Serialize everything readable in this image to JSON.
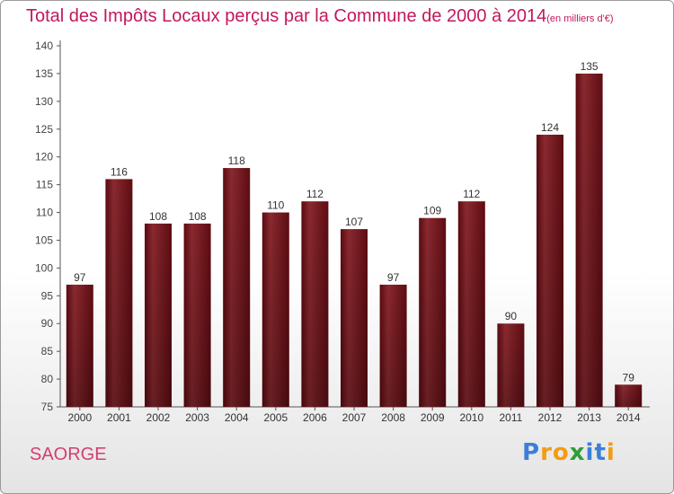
{
  "chart_data": {
    "type": "bar",
    "title": "Total des Impôts Locaux perçus par la Commune de 2000 à 2014",
    "title_unit": "(en milliers d'€)",
    "categories": [
      "2000",
      "2001",
      "2002",
      "2003",
      "2004",
      "2005",
      "2006",
      "2007",
      "2008",
      "2009",
      "2010",
      "2011",
      "2012",
      "2013",
      "2014"
    ],
    "values": [
      97,
      116,
      108,
      108,
      118,
      110,
      112,
      107,
      97,
      109,
      112,
      90,
      124,
      135,
      79
    ],
    "ylim": [
      75,
      140
    ],
    "yticks": [
      75,
      80,
      85,
      90,
      95,
      100,
      105,
      110,
      115,
      120,
      125,
      130,
      135,
      140
    ],
    "xlabel": "",
    "ylabel": "",
    "grid": false,
    "bar_color": "#7a1c22"
  },
  "commune": "SAORGE",
  "logo": {
    "text": "Proxiti",
    "letters": [
      "P",
      "r",
      "o",
      "x",
      "i",
      "t",
      "i"
    ],
    "colors": [
      "#3b7fd9",
      "#f39c12",
      "#f39c12",
      "#2f9e3a",
      "#3b7fd9",
      "#3b7fd9",
      "#f39c12"
    ]
  }
}
